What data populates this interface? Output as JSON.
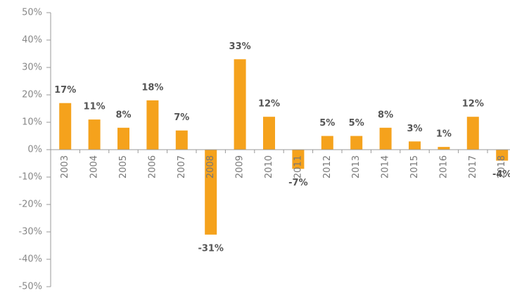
{
  "chart_data": {
    "type": "bar",
    "categories": [
      "2003",
      "2004",
      "2005",
      "2006",
      "2007",
      "2008",
      "2009",
      "2010",
      "2011",
      "2012",
      "2013",
      "2014",
      "2015",
      "2016",
      "2017",
      "2018"
    ],
    "values": [
      17,
      11,
      8,
      18,
      7,
      -31,
      33,
      12,
      -7,
      5,
      5,
      8,
      3,
      1,
      12,
      -4
    ],
    "value_labels": [
      "17%",
      "11%",
      "8%",
      "18%",
      "7%",
      "-31%",
      "33%",
      "12%",
      "-7%",
      "5%",
      "5%",
      "8%",
      "3%",
      "1%",
      "12%",
      "-4%"
    ],
    "color": "#f5a21c",
    "ylim": [
      -50,
      50
    ],
    "yticks": [
      {
        "value": -50,
        "label": "-50%"
      },
      {
        "value": -40,
        "label": "-40%"
      },
      {
        "value": -30,
        "label": "-30%"
      },
      {
        "value": -20,
        "label": "-20%"
      },
      {
        "value": -10,
        "label": "-10%"
      },
      {
        "value": 0,
        "label": "0%"
      },
      {
        "value": 10,
        "label": "10%"
      },
      {
        "value": 20,
        "label": "20%"
      },
      {
        "value": 30,
        "label": "30%"
      },
      {
        "value": 40,
        "label": "40%"
      },
      {
        "value": 50,
        "label": "50%"
      }
    ],
    "grid": false
  }
}
